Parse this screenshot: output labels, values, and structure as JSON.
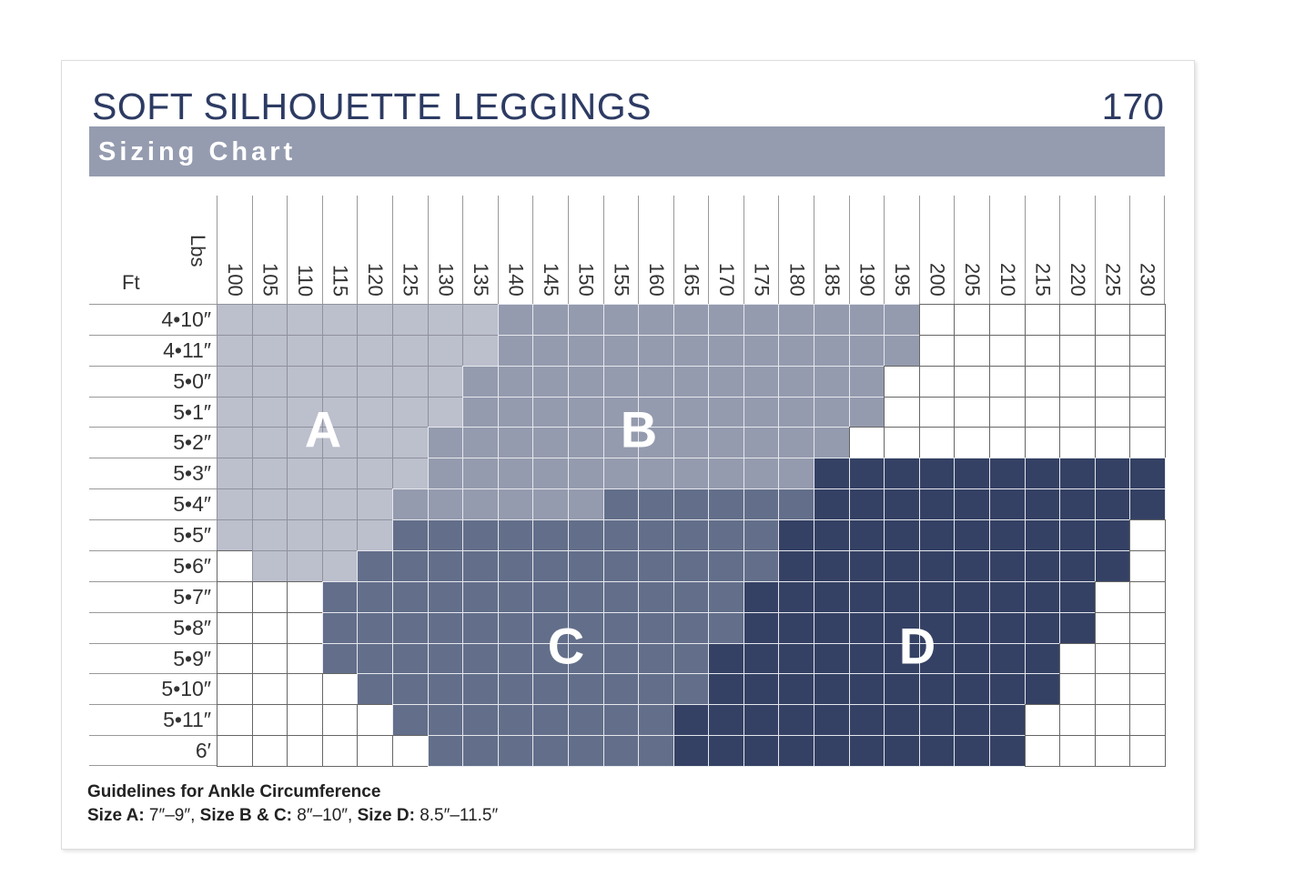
{
  "header": {
    "title": "SOFT SILHOUETTE LEGGINGS",
    "page_number": "170",
    "subtitle": "Sizing Chart"
  },
  "chart_data": {
    "type": "heatmap",
    "xlabel": "Lbs",
    "ylabel": "Ft",
    "x": [
      "100",
      "105",
      "110",
      "115",
      "120",
      "125",
      "130",
      "135",
      "140",
      "145",
      "150",
      "155",
      "160",
      "165",
      "170",
      "175",
      "180",
      "185",
      "190",
      "195",
      "200",
      "205",
      "210",
      "215",
      "220",
      "225",
      "230"
    ],
    "y": [
      "4•10″",
      "4•11″",
      "5•0″",
      "5•1″",
      "5•2″",
      "5•3″",
      "5•4″",
      "5•5″",
      "5•6″",
      "5•7″",
      "5•8″",
      "5•9″",
      "5•10″",
      "5•11″",
      "6′"
    ],
    "cells": [
      "AAAAAAAABBBBBBBBBBBB-------",
      "AAAAAAAABBBBBBBBBBBB-------",
      "AAAAAAABBBBBBBBBBBB--------",
      "AAAAAAABBBBBBBBBBBB--------",
      "AAAAAABBBBBBBBBBBB---------",
      "AAAAAABBBBBBBBBBBDDDDDDDDDD",
      "AAAAABBBBBBCCCCCCDDDDDDDDDD",
      "AAAAACCCCCCCCCCCDDDDDDDDDD-",
      "-AAACCCCCCCCCCCCDDDDDDDDDD-",
      "---CCCCCCCCCCCCDDDDDDDDDD--",
      "---CCCCCCCCCCCCDDDDDDDDDD--",
      "---CCCCCCCCCCCDDDDDDDDDD---",
      "----CCCCCCCCCCDDDDDDDDDD---",
      "-----CCCCCCCCDDDDDDDDDD----",
      "------CCCCCCCDDDDDDDDDD----"
    ],
    "sizes": [
      {
        "label": "A",
        "color": "#bcbfcc"
      },
      {
        "label": "B",
        "color": "#959bae"
      },
      {
        "label": "C",
        "color": "#636f8a"
      },
      {
        "label": "D",
        "color": "#354164"
      }
    ],
    "blank_color": "#ffffff"
  },
  "footer": {
    "heading": "Guidelines for Ankle Circumference",
    "items": [
      {
        "label": "Size A:",
        "value": " 7″–9″, "
      },
      {
        "label": "Size B & C:",
        "value": " 8″–10″, "
      },
      {
        "label": "Size D:",
        "value": " 8.5″–11.5″"
      }
    ]
  },
  "colors": {
    "title": "#2d3b63",
    "band": "#959cb0"
  }
}
